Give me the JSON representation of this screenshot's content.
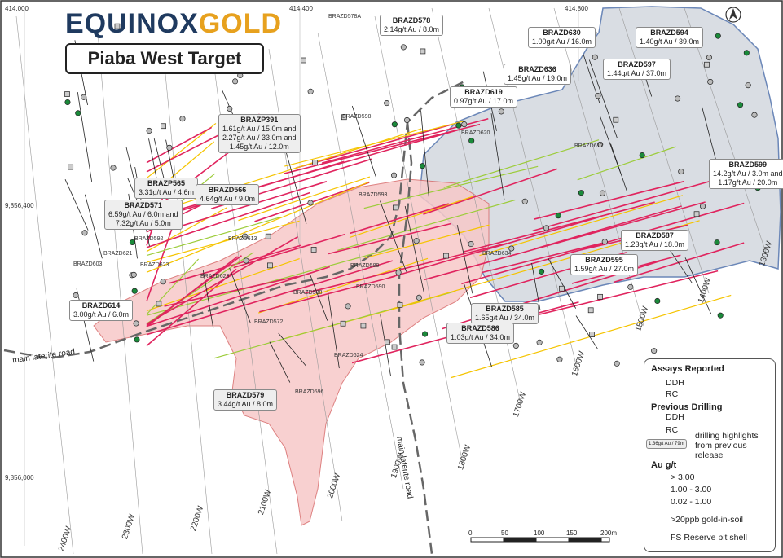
{
  "brand": {
    "part1": "EQUINOX",
    "part2": "GOLD"
  },
  "title": "Piaba West Target",
  "north": "N",
  "coords": {
    "e414000": "414,000",
    "e414400": "414,400",
    "e414800": "414,800",
    "n9856400": "9,856,400",
    "n9856000": "9,856,000"
  },
  "grid_labels": [
    "2400W",
    "2300W",
    "2200W",
    "2100W",
    "2000W",
    "1900W",
    "1800W",
    "1700W",
    "1600W",
    "1500W",
    "1400W",
    "1300W"
  ],
  "roads": {
    "main1": "main laterite road",
    "main2": "main laterite road"
  },
  "callouts": [
    {
      "id": "BRAZD578",
      "lines": [
        "2.14g/t Au / 8.0m"
      ],
      "gray": false
    },
    {
      "id": "BRAZD594",
      "lines": [
        "1.40g/t Au / 39.0m"
      ],
      "gray": false
    },
    {
      "id": "BRAZD630",
      "lines": [
        "1.00g/t Au / 16.0m"
      ],
      "gray": false
    },
    {
      "id": "BRAZD597",
      "lines": [
        "1.44g/t Au / 37.0m"
      ],
      "gray": false
    },
    {
      "id": "BRAZD636",
      "lines": [
        "1.45g/t Au / 19.0m"
      ],
      "gray": false
    },
    {
      "id": "BRAZD619",
      "lines": [
        "0.97g/t Au / 17.0m"
      ],
      "gray": false
    },
    {
      "id": "BRAZP391",
      "lines": [
        "1.61g/t Au / 15.0m and",
        "2.27g/t Au / 33.0m and",
        "1.45g/t Au / 12.0m"
      ],
      "gray": true
    },
    {
      "id": "BRAZP565",
      "lines": [
        "3.31g/t Au / 4.6m"
      ],
      "gray": true
    },
    {
      "id": "BRAZD566",
      "lines": [
        "4.64g/t Au / 9.0m"
      ],
      "gray": true
    },
    {
      "id": "BRAZD571",
      "lines": [
        "6.59g/t Au / 6.0m and",
        "7.32g/t Au / 5.0m"
      ],
      "gray": true
    },
    {
      "id": "BRAZD599",
      "lines": [
        "14.2g/t Au / 3.0m and",
        "1.17g/t Au / 20.0m"
      ],
      "gray": false
    },
    {
      "id": "BRAZD587",
      "lines": [
        "1.23g/t Au / 18.0m"
      ],
      "gray": false
    },
    {
      "id": "BRAZD595",
      "lines": [
        "1.59g/t Au / 27.0m"
      ],
      "gray": false
    },
    {
      "id": "BRAZD614",
      "lines": [
        "3.00g/t Au / 6.0m"
      ],
      "gray": false
    },
    {
      "id": "BRAZD585",
      "lines": [
        "1.65g/t Au / 34.0m"
      ],
      "gray": true
    },
    {
      "id": "BRAZD586",
      "lines": [
        "1.03g/t Au / 34.0m"
      ],
      "gray": true
    },
    {
      "id": "BRAZD579",
      "lines": [
        "3.44g/t Au / 8.0m"
      ],
      "gray": true
    }
  ],
  "hole_labels": [
    "BRAZD578A",
    "BRAZD598",
    "BRAZD620",
    "BRAZD617",
    "BRAZD593",
    "BRAZD592",
    "BRAZD621",
    "BRAZD603",
    "BRAZD623",
    "BRAZD613",
    "BRAZD628",
    "BRAZD589",
    "BRAZD590",
    "BRAZD588",
    "BRAZD572",
    "BRAZD624",
    "BRAZD596",
    "BRAZD634"
  ],
  "legend": {
    "assays_title": "Assays Reported",
    "ddh": "DDH",
    "rc": "RC",
    "previous_title": "Previous Drilling",
    "prev_ddh": "DDH",
    "prev_rc": "RC",
    "sample_box": "1.36g/t Au / 79m",
    "highlight_text": "drilling highlights from previous release",
    "au_title": "Au g/t",
    "grade_high": "> 3.00",
    "grade_mid": "1.00 - 3.00",
    "grade_low": "0.02 - 1.00",
    "soil": ">20ppb gold-in-soil",
    "pit": "FS Reserve pit shell",
    "colors": {
      "high": "#e0245e",
      "mid": "#f5c400",
      "low": "#9ccc3a",
      "soil": "#f7c8c8",
      "pit": "#d9dde3"
    }
  },
  "scale": {
    "ticks": [
      "0",
      "50",
      "100",
      "150",
      "200m"
    ]
  }
}
